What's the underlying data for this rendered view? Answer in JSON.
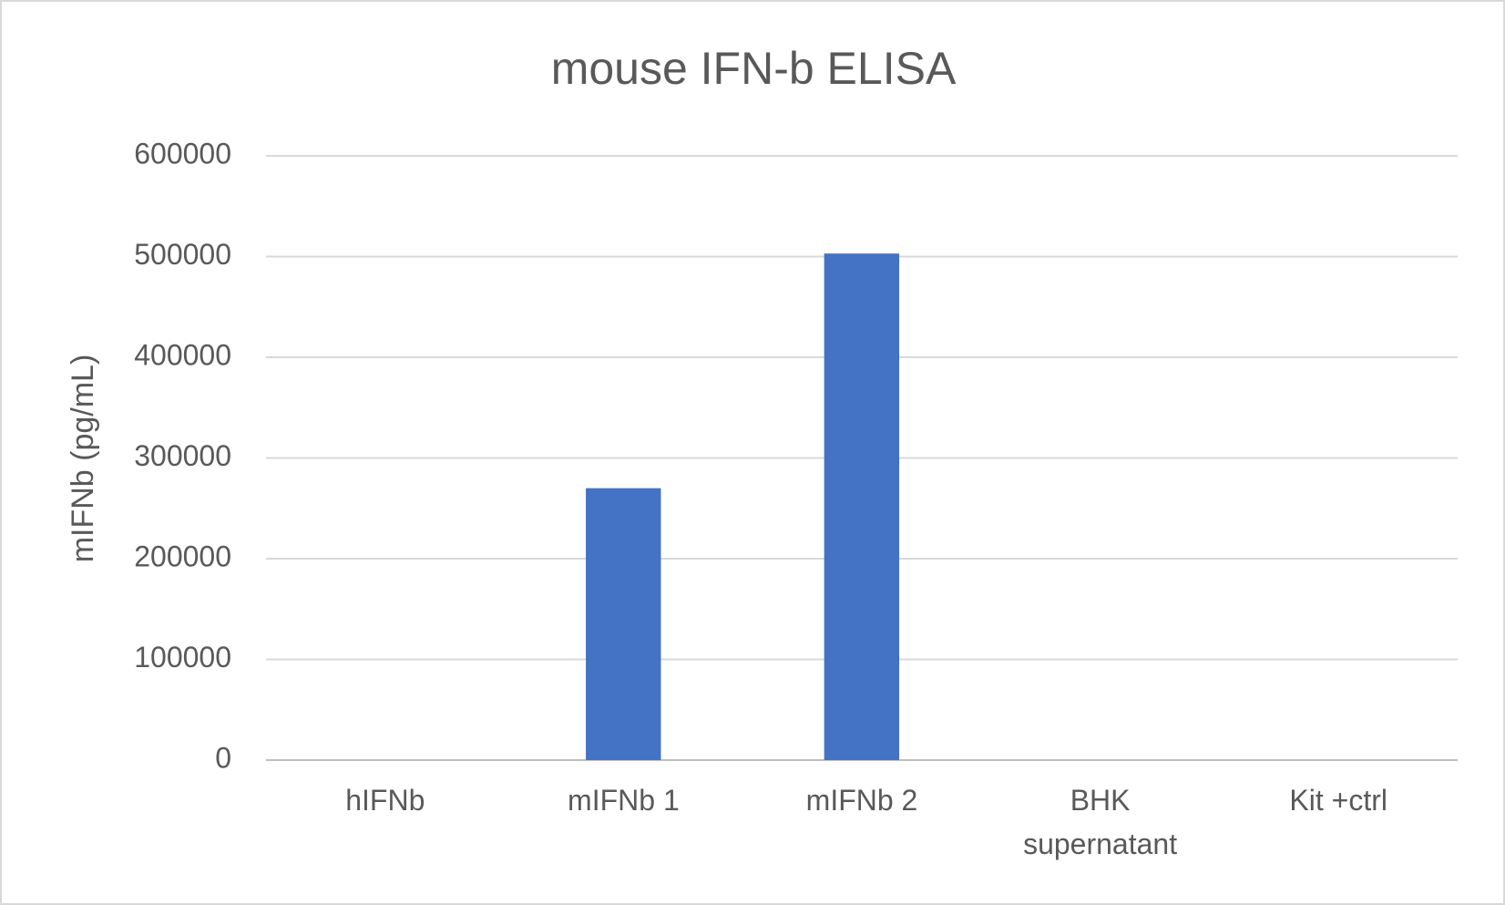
{
  "chart_data": {
    "type": "bar",
    "title": "mouse IFN-b ELISA",
    "y_label": "mIFNb (pg/mL)",
    "categories": [
      "hIFNb",
      "mIFNb 1",
      "mIFNb 2",
      "BHK supernatant",
      "Kit +ctrl"
    ],
    "values": [
      0,
      270000,
      503000,
      0,
      0
    ],
    "color": "#4472c4",
    "ylim": [
      0,
      600000
    ],
    "yticks": [
      0,
      100000,
      200000,
      300000,
      400000,
      500000,
      600000
    ],
    "grid": true
  }
}
